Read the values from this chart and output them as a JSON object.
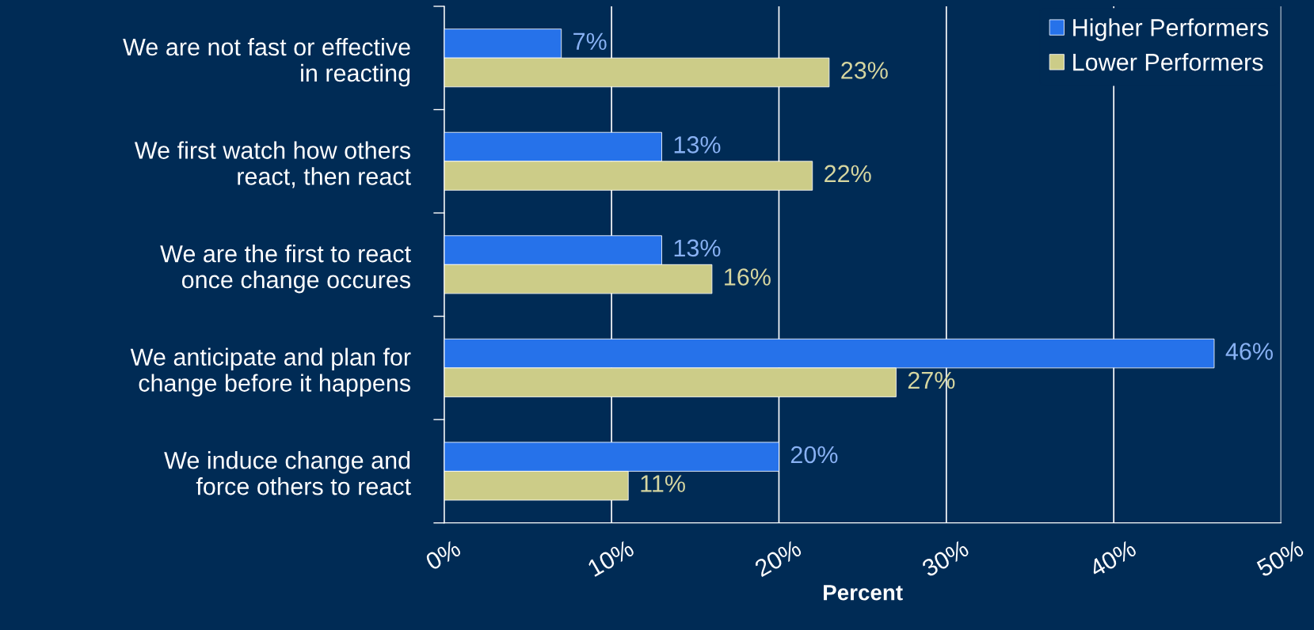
{
  "chart_data": {
    "type": "bar",
    "orientation": "horizontal",
    "xlabel": "Percent",
    "categories": [
      "We are not fast or effective\nin reacting",
      "We first watch how others\nreact, then react",
      "We are the first to react\nonce change occures",
      "We anticipate and plan for\nchange before it happens",
      "We induce change and\nforce others to react"
    ],
    "series": [
      {
        "name": "Higher Performers",
        "color": "#2672ea",
        "values": [
          7,
          13,
          13,
          46,
          20
        ],
        "value_labels": [
          "7%",
          "13%",
          "13%",
          "46%",
          "20%"
        ]
      },
      {
        "name": "Lower Performers",
        "color": "#cccc88",
        "values": [
          23,
          22,
          16,
          27,
          11
        ],
        "value_labels": [
          "23%",
          "22%",
          "16%",
          "27%",
          "11%"
        ]
      }
    ],
    "xlim": [
      0,
      50
    ],
    "xticks": [
      {
        "value": 0,
        "label": "0%"
      },
      {
        "value": 10,
        "label": "10%"
      },
      {
        "value": 20,
        "label": "20%"
      },
      {
        "value": 30,
        "label": "30%"
      },
      {
        "value": 40,
        "label": "40%"
      },
      {
        "value": 50,
        "label": "50%"
      }
    ],
    "grid": "x",
    "legend": "top right"
  }
}
